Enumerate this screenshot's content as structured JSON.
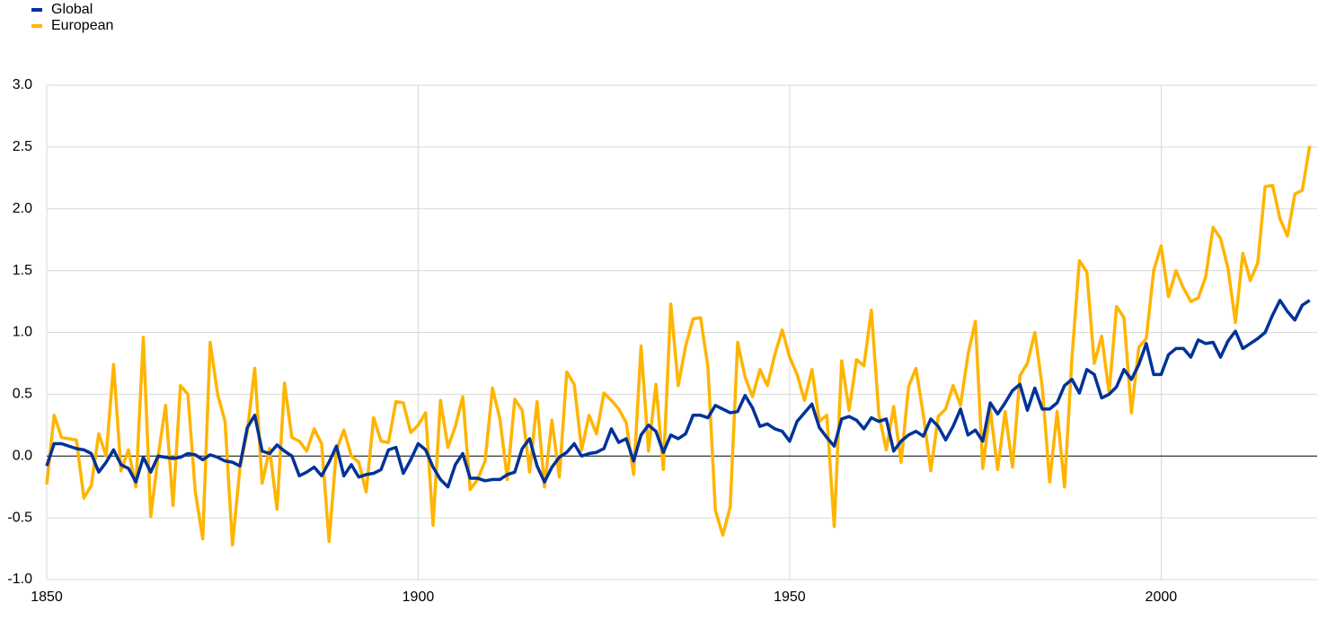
{
  "chart_data": {
    "type": "line",
    "x": [
      1850,
      1851,
      1852,
      1853,
      1854,
      1855,
      1856,
      1857,
      1858,
      1859,
      1860,
      1861,
      1862,
      1863,
      1864,
      1865,
      1866,
      1867,
      1868,
      1869,
      1870,
      1871,
      1872,
      1873,
      1874,
      1875,
      1876,
      1877,
      1878,
      1879,
      1880,
      1881,
      1882,
      1883,
      1884,
      1885,
      1886,
      1887,
      1888,
      1889,
      1890,
      1891,
      1892,
      1893,
      1894,
      1895,
      1896,
      1897,
      1898,
      1899,
      1900,
      1901,
      1902,
      1903,
      1904,
      1905,
      1906,
      1907,
      1908,
      1909,
      1910,
      1911,
      1912,
      1913,
      1914,
      1915,
      1916,
      1917,
      1918,
      1919,
      1920,
      1921,
      1922,
      1923,
      1924,
      1925,
      1926,
      1927,
      1928,
      1929,
      1930,
      1931,
      1932,
      1933,
      1934,
      1935,
      1936,
      1937,
      1938,
      1939,
      1940,
      1941,
      1942,
      1943,
      1944,
      1945,
      1946,
      1947,
      1948,
      1949,
      1950,
      1951,
      1952,
      1953,
      1954,
      1955,
      1956,
      1957,
      1958,
      1959,
      1960,
      1961,
      1962,
      1963,
      1964,
      1965,
      1966,
      1967,
      1968,
      1969,
      1970,
      1971,
      1972,
      1973,
      1974,
      1975,
      1976,
      1977,
      1978,
      1979,
      1980,
      1981,
      1982,
      1983,
      1984,
      1985,
      1986,
      1987,
      1988,
      1989,
      1990,
      1991,
      1992,
      1993,
      1994,
      1995,
      1996,
      1997,
      1998,
      1999,
      2000,
      2001,
      2002,
      2003,
      2004,
      2005,
      2006,
      2007,
      2008,
      2009,
      2010,
      2011,
      2012,
      2013,
      2014,
      2015,
      2016,
      2017,
      2018,
      2019,
      2020
    ],
    "series": [
      {
        "name": "Global",
        "color": "#003299",
        "values": [
          -0.08,
          0.1,
          0.1,
          0.08,
          0.06,
          0.05,
          0.02,
          -0.13,
          -0.05,
          0.05,
          -0.07,
          -0.1,
          -0.21,
          -0.01,
          -0.13,
          0.0,
          -0.01,
          -0.02,
          -0.01,
          0.02,
          0.01,
          -0.03,
          0.01,
          -0.01,
          -0.04,
          -0.05,
          -0.08,
          0.23,
          0.33,
          0.04,
          0.02,
          0.09,
          0.04,
          0.0,
          -0.16,
          -0.13,
          -0.09,
          -0.16,
          -0.05,
          0.08,
          -0.16,
          -0.07,
          -0.17,
          -0.15,
          -0.14,
          -0.11,
          0.05,
          0.07,
          -0.14,
          -0.03,
          0.1,
          0.05,
          -0.09,
          -0.19,
          -0.25,
          -0.07,
          0.02,
          -0.18,
          -0.18,
          -0.2,
          -0.19,
          -0.19,
          -0.15,
          -0.13,
          0.06,
          0.14,
          -0.08,
          -0.21,
          -0.09,
          -0.01,
          0.03,
          0.1,
          0.0,
          0.02,
          0.03,
          0.06,
          0.22,
          0.11,
          0.14,
          -0.04,
          0.17,
          0.25,
          0.2,
          0.03,
          0.17,
          0.14,
          0.18,
          0.33,
          0.33,
          0.31,
          0.41,
          0.38,
          0.35,
          0.36,
          0.49,
          0.39,
          0.24,
          0.26,
          0.22,
          0.2,
          0.12,
          0.28,
          0.35,
          0.42,
          0.23,
          0.15,
          0.08,
          0.3,
          0.32,
          0.29,
          0.22,
          0.31,
          0.28,
          0.3,
          0.04,
          0.12,
          0.17,
          0.2,
          0.16,
          0.3,
          0.24,
          0.13,
          0.24,
          0.38,
          0.17,
          0.21,
          0.12,
          0.43,
          0.34,
          0.43,
          0.53,
          0.58,
          0.37,
          0.55,
          0.38,
          0.38,
          0.43,
          0.57,
          0.62,
          0.51,
          0.7,
          0.66,
          0.47,
          0.5,
          0.56,
          0.7,
          0.62,
          0.74,
          0.91,
          0.66,
          0.66,
          0.82,
          0.87,
          0.87,
          0.8,
          0.94,
          0.91,
          0.92,
          0.8,
          0.93,
          1.01,
          0.87,
          0.91,
          0.95,
          1.0,
          1.14,
          1.26,
          1.17,
          1.1,
          1.22,
          1.26
        ]
      },
      {
        "name": "European",
        "color": "#ffb400",
        "values": [
          -0.23,
          0.33,
          0.15,
          0.14,
          0.13,
          -0.34,
          -0.24,
          0.18,
          0.0,
          0.74,
          -0.12,
          0.05,
          -0.25,
          0.96,
          -0.49,
          0.0,
          0.41,
          -0.4,
          0.57,
          0.5,
          -0.29,
          -0.67,
          0.92,
          0.5,
          0.28,
          -0.72,
          -0.1,
          0.2,
          0.71,
          -0.22,
          0.06,
          -0.43,
          0.59,
          0.15,
          0.12,
          0.04,
          0.22,
          0.1,
          -0.69,
          0.05,
          0.21,
          0.0,
          -0.05,
          -0.29,
          0.31,
          0.12,
          0.11,
          0.44,
          0.43,
          0.19,
          0.25,
          0.35,
          -0.56,
          0.45,
          0.07,
          0.24,
          0.48,
          -0.27,
          -0.19,
          -0.04,
          0.55,
          0.3,
          -0.19,
          0.46,
          0.37,
          -0.13,
          0.44,
          -0.25,
          0.29,
          -0.17,
          0.68,
          0.58,
          0.05,
          0.33,
          0.18,
          0.51,
          0.45,
          0.38,
          0.27,
          -0.15,
          0.89,
          0.04,
          0.58,
          -0.11,
          1.23,
          0.57,
          0.89,
          1.11,
          1.12,
          0.72,
          -0.44,
          -0.64,
          -0.41,
          0.92,
          0.64,
          0.48,
          0.7,
          0.57,
          0.82,
          1.02,
          0.8,
          0.66,
          0.45,
          0.7,
          0.28,
          0.33,
          -0.57,
          0.77,
          0.37,
          0.78,
          0.73,
          1.18,
          0.34,
          0.05,
          0.4,
          -0.05,
          0.56,
          0.71,
          0.33,
          -0.12,
          0.32,
          0.38,
          0.57,
          0.41,
          0.82,
          1.09,
          -0.1,
          0.38,
          -0.11,
          0.36,
          -0.09,
          0.65,
          0.75,
          1.0,
          0.56,
          -0.21,
          0.36,
          -0.25,
          0.8,
          1.58,
          1.49,
          0.75,
          0.97,
          0.51,
          1.21,
          1.12,
          0.35,
          0.88,
          0.95,
          1.5,
          1.7,
          1.29,
          1.5,
          1.36,
          1.25,
          1.28,
          1.45,
          1.85,
          1.76,
          1.52,
          1.08,
          1.64,
          1.42,
          1.56,
          2.18,
          2.19,
          1.92,
          1.78,
          2.12,
          2.15,
          2.51
        ]
      }
    ],
    "xlim": [
      1850,
      2021
    ],
    "xticks": [
      1850,
      1900,
      1950,
      2000
    ],
    "ylim": [
      -1,
      3
    ],
    "yticks": [
      {
        "value": -1,
        "label": "-1.0"
      },
      -0.5,
      {
        "value": 0,
        "label": "0.0"
      },
      0.5,
      {
        "value": 1,
        "label": "1.0"
      },
      1.5,
      {
        "value": 2,
        "label": "2.0"
      },
      2.5,
      {
        "value": 3,
        "label": "3.0"
      }
    ],
    "grid": true,
    "legend": "top-left"
  }
}
